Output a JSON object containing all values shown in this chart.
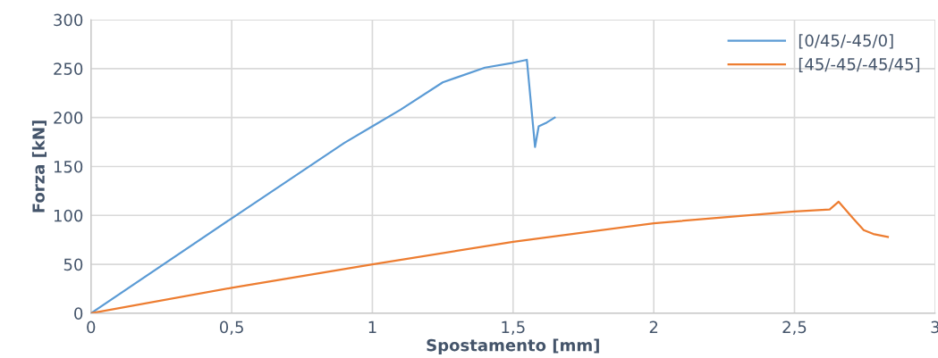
{
  "chart_data": {
    "type": "line",
    "xlabel": "Spostamento [mm]",
    "ylabel": "Forza [kN]",
    "xlim": [
      0,
      3
    ],
    "xticks": [
      0,
      {
        "value": 0.5,
        "label": "0,5"
      },
      1,
      {
        "value": 1.5,
        "label": "1,5"
      },
      2,
      {
        "value": 2.5,
        "label": "2,5"
      },
      3
    ],
    "ylim": [
      0,
      300
    ],
    "yticks": [
      0,
      50,
      100,
      150,
      200,
      250,
      300
    ],
    "grid": true,
    "legend": "top right",
    "marker": "none",
    "line_style": "solid",
    "series": [
      {
        "name": "[0/45/-45/0]",
        "color": "#5b9bd5",
        "x": [
          0,
          0.5,
          0.9,
          1.0,
          1.1,
          1.25,
          1.4,
          1.5,
          1.549,
          1.578,
          1.591,
          1.62,
          1.648
        ],
        "values": [
          0,
          97,
          174,
          191,
          208,
          236,
          251,
          256,
          259,
          170,
          191,
          195,
          200
        ]
      },
      {
        "name": "[45/-45/-45/45]",
        "color": "#ed7d31",
        "x": [
          0,
          0.5,
          1.0,
          1.5,
          2.0,
          2.5,
          2.625,
          2.657,
          2.708,
          2.746,
          2.78,
          2.832
        ],
        "values": [
          0,
          26,
          50,
          73,
          92,
          104,
          106,
          114,
          97,
          85,
          81,
          78
        ]
      }
    ]
  }
}
